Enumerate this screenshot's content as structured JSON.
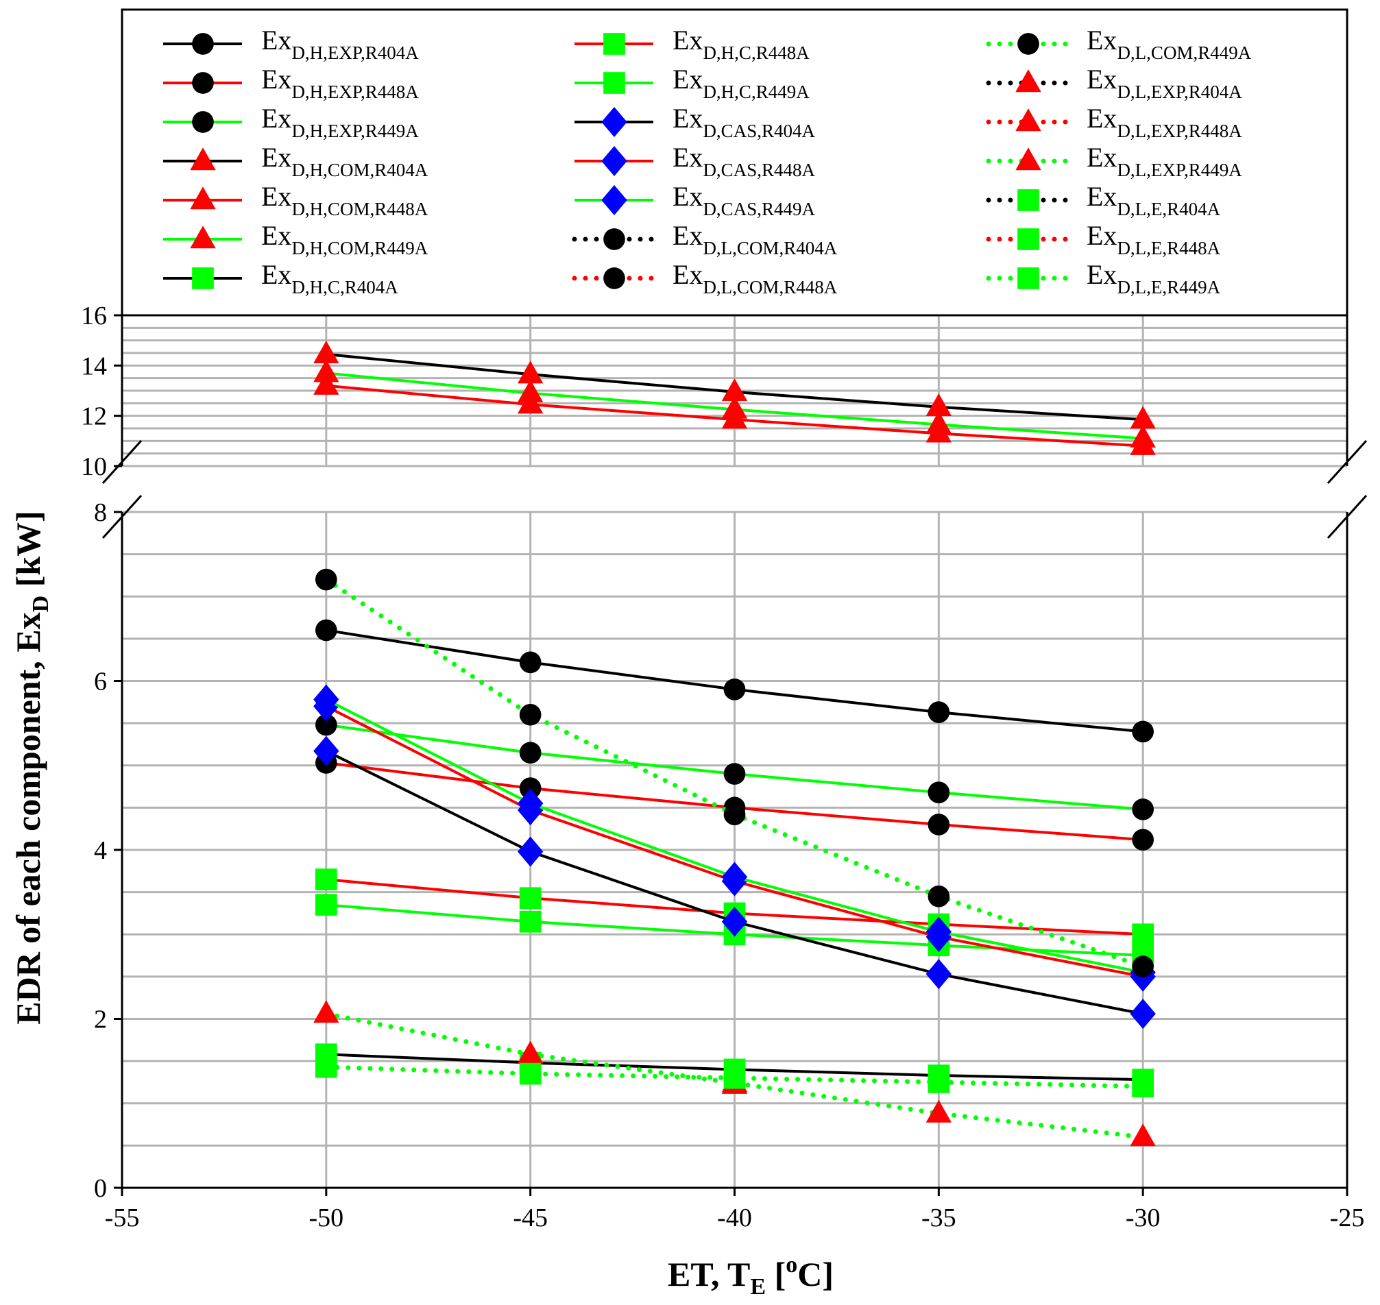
{
  "chart_data": {
    "type": "line",
    "title": "",
    "xlabel": {
      "main": "ET, T",
      "sub": "E",
      "bracket": " [",
      "sup": "o",
      "unit": "C]"
    },
    "ylabel": {
      "main": "EDR of each component, Ex",
      "sub": "D",
      "unit": " [kW]"
    },
    "x_ticks": [
      "-55",
      "-50",
      "-45",
      "-40",
      "-35",
      "-30",
      "-25"
    ],
    "y_ticks_lower": [
      "0",
      "2",
      "4",
      "6",
      "8"
    ],
    "y_ticks_upper": [
      "10",
      "12",
      "14",
      "16"
    ],
    "xlim": [
      -55,
      -25
    ],
    "ylim_lower": [
      0,
      8
    ],
    "ylim_upper": [
      10,
      16
    ],
    "x": [
      -50,
      -45,
      -40,
      -35,
      -30
    ],
    "grid": true,
    "legend_position": "top",
    "series": [
      {
        "label": "Ex",
        "sub": "D,H,EXP,R404A",
        "color": "#000000",
        "dash": false,
        "marker": "circle",
        "mcolor": "#000000",
        "values": [
          6.6,
          6.22,
          5.9,
          5.63,
          5.4
        ]
      },
      {
        "label": "Ex",
        "sub": "D,H,EXP,R448A",
        "color": "#ff0000",
        "dash": false,
        "marker": "circle",
        "mcolor": "#000000",
        "values": [
          5.03,
          4.73,
          4.5,
          4.3,
          4.12
        ]
      },
      {
        "label": "Ex",
        "sub": "D,H,EXP,R449A",
        "color": "#00ff00",
        "dash": false,
        "marker": "circle",
        "mcolor": "#000000",
        "values": [
          5.48,
          5.15,
          4.9,
          4.68,
          4.48
        ]
      },
      {
        "label": "Ex",
        "sub": "D,H,COM,R404A",
        "color": "#000000",
        "dash": false,
        "marker": "triangle",
        "mcolor": "#ff0000",
        "values": [
          14.45,
          13.65,
          12.95,
          12.35,
          11.85
        ]
      },
      {
        "label": "Ex",
        "sub": "D,H,COM,R448A",
        "color": "#ff0000",
        "dash": false,
        "marker": "triangle",
        "mcolor": "#ff0000",
        "values": [
          13.2,
          12.45,
          11.85,
          11.3,
          10.8
        ]
      },
      {
        "label": "Ex",
        "sub": "D,H,COM,R449A",
        "color": "#00ff00",
        "dash": false,
        "marker": "triangle",
        "mcolor": "#ff0000",
        "values": [
          13.7,
          12.9,
          12.25,
          11.65,
          11.1
        ]
      },
      {
        "label": "Ex",
        "sub": "D,H,C,R404A",
        "color": "#000000",
        "dash": false,
        "marker": "square",
        "mcolor": "#00ff00",
        "values": [
          1.58,
          1.48,
          1.4,
          1.33,
          1.28
        ]
      },
      {
        "label": "Ex",
        "sub": "D,H,C,R448A",
        "color": "#ff0000",
        "dash": false,
        "marker": "square",
        "mcolor": "#00ff00",
        "values": [
          3.65,
          3.43,
          3.25,
          3.12,
          3.0
        ]
      },
      {
        "label": "Ex",
        "sub": "D,H,C,R449A",
        "color": "#00ff00",
        "dash": false,
        "marker": "square",
        "mcolor": "#00ff00",
        "values": [
          3.35,
          3.15,
          3.0,
          2.87,
          2.75
        ]
      },
      {
        "label": "Ex",
        "sub": "D,CAS,R404A",
        "color": "#000000",
        "dash": false,
        "marker": "diamond",
        "mcolor": "#0000ff",
        "values": [
          5.17,
          3.98,
          3.15,
          2.53,
          2.06
        ]
      },
      {
        "label": "Ex",
        "sub": "D,CAS,R448A",
        "color": "#ff0000",
        "dash": false,
        "marker": "diamond",
        "mcolor": "#0000ff",
        "values": [
          5.7,
          4.47,
          3.63,
          2.97,
          2.5
        ]
      },
      {
        "label": "Ex",
        "sub": "D,CAS,R449A",
        "color": "#00ff00",
        "dash": false,
        "marker": "diamond",
        "mcolor": "#0000ff",
        "values": [
          5.78,
          4.55,
          3.68,
          3.03,
          2.55
        ]
      },
      {
        "label": "Ex",
        "sub": "D,L,COM,R404A",
        "color": "#000000",
        "dash": true,
        "marker": "circle",
        "mcolor": "#000000",
        "values": [
          null,
          null,
          null,
          null,
          null
        ]
      },
      {
        "label": "Ex",
        "sub": "D,L,COM,R448A",
        "color": "#ff0000",
        "dash": true,
        "marker": "circle",
        "mcolor": "#000000",
        "values": [
          null,
          null,
          null,
          null,
          null
        ]
      },
      {
        "label": "Ex",
        "sub": "D,L,COM,R449A",
        "color": "#00ff00",
        "dash": true,
        "marker": "circle",
        "mcolor": "#000000",
        "values": [
          7.2,
          5.6,
          4.42,
          3.45,
          2.62
        ]
      },
      {
        "label": "Ex",
        "sub": "D,L,EXP,R404A",
        "color": "#000000",
        "dash": true,
        "marker": "triangle",
        "mcolor": "#ff0000",
        "values": [
          null,
          null,
          null,
          null,
          null
        ]
      },
      {
        "label": "Ex",
        "sub": "D,L,EXP,R448A",
        "color": "#ff0000",
        "dash": true,
        "marker": "triangle",
        "mcolor": "#ff0000",
        "values": [
          null,
          null,
          1.22,
          null,
          null
        ]
      },
      {
        "label": "Ex",
        "sub": "D,L,EXP,R449A",
        "color": "#00ff00",
        "dash": true,
        "marker": "triangle",
        "mcolor": "#ff0000",
        "values": [
          2.06,
          1.58,
          1.24,
          0.88,
          0.6
        ]
      },
      {
        "label": "Ex",
        "sub": "D,L,E,R404A",
        "color": "#000000",
        "dash": true,
        "marker": "square",
        "mcolor": "#00ff00",
        "values": [
          null,
          null,
          null,
          null,
          null
        ]
      },
      {
        "label": "Ex",
        "sub": "D,L,E,R448A",
        "color": "#ff0000",
        "dash": true,
        "marker": "square",
        "mcolor": "#00ff00",
        "values": [
          null,
          null,
          null,
          null,
          null
        ]
      },
      {
        "label": "Ex",
        "sub": "D,L,E,R449A",
        "color": "#00ff00",
        "dash": true,
        "marker": "square",
        "mcolor": "#00ff00",
        "values": [
          1.43,
          1.35,
          1.3,
          1.25,
          1.2
        ]
      }
    ]
  }
}
